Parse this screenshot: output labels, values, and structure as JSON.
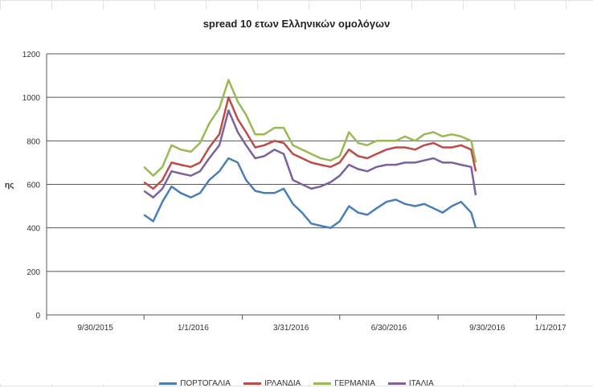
{
  "chart_data": {
    "type": "line",
    "title": "spread 10 ετων Ελληνικών ομολόγων",
    "ylabel": "ης",
    "xlabel": "",
    "ylim": [
      0,
      1200
    ],
    "yticks": [
      0,
      200,
      400,
      600,
      800,
      1000,
      1200
    ],
    "x_ticks": [
      "9/30/2015",
      "1/1/2016",
      "3/31/2016",
      "6/30/2016",
      "9/30/2016",
      "1/1/2017"
    ],
    "xlim": [
      "2015-08-01",
      "2017-02-15"
    ],
    "grid": true,
    "legend_position": "bottom",
    "x": [
      "2015-11-15",
      "2015-11-25",
      "2015-12-05",
      "2015-12-15",
      "2015-12-25",
      "2016-01-05",
      "2016-01-15",
      "2016-01-25",
      "2016-02-05",
      "2016-02-15",
      "2016-02-25",
      "2016-03-05",
      "2016-03-15",
      "2016-03-25",
      "2016-04-05",
      "2016-04-15",
      "2016-04-25",
      "2016-05-05",
      "2016-05-15",
      "2016-05-25",
      "2016-06-05",
      "2016-06-15",
      "2016-06-25",
      "2016-07-05",
      "2016-07-15",
      "2016-07-25",
      "2016-08-05",
      "2016-08-15",
      "2016-08-25",
      "2016-09-05",
      "2016-09-15",
      "2016-09-25",
      "2016-10-05",
      "2016-10-15",
      "2016-10-25",
      "2016-11-05",
      "2016-11-10"
    ],
    "series": [
      {
        "name": "ΠΟΡΤΟΓΑΛΙΑ",
        "color": "#4a7ebb",
        "values": [
          460,
          430,
          520,
          590,
          560,
          540,
          560,
          620,
          660,
          720,
          700,
          620,
          570,
          560,
          560,
          580,
          510,
          470,
          420,
          410,
          400,
          430,
          500,
          470,
          460,
          490,
          520,
          530,
          510,
          500,
          510,
          490,
          470,
          500,
          520,
          470,
          400
        ]
      },
      {
        "name": "ΙΡΛΑΝΔΙΑ",
        "color": "#be4b48",
        "values": [
          610,
          580,
          620,
          700,
          690,
          680,
          700,
          770,
          830,
          1000,
          900,
          840,
          770,
          780,
          800,
          790,
          740,
          720,
          700,
          690,
          680,
          700,
          760,
          730,
          720,
          740,
          760,
          770,
          770,
          760,
          780,
          790,
          770,
          770,
          780,
          760,
          660
        ]
      },
      {
        "name": "ΓΕΡΜΑΝΙΑ",
        "color": "#98b954",
        "values": [
          680,
          640,
          680,
          780,
          760,
          750,
          790,
          880,
          950,
          1080,
          980,
          920,
          830,
          830,
          860,
          860,
          780,
          760,
          740,
          720,
          710,
          730,
          840,
          790,
          780,
          800,
          800,
          800,
          820,
          800,
          830,
          840,
          820,
          830,
          820,
          800,
          700
        ]
      },
      {
        "name": "ΙΤΑΛΙΑ",
        "color": "#7d60a0",
        "values": [
          570,
          540,
          580,
          660,
          650,
          640,
          660,
          720,
          780,
          940,
          840,
          780,
          720,
          730,
          760,
          740,
          620,
          600,
          580,
          590,
          610,
          640,
          690,
          670,
          660,
          680,
          690,
          690,
          700,
          700,
          710,
          720,
          700,
          700,
          690,
          680,
          550
        ]
      }
    ]
  }
}
